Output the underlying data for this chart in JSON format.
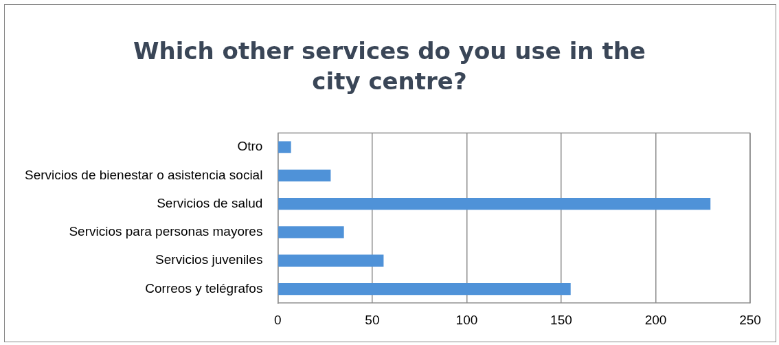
{
  "chart_data": {
    "type": "bar",
    "orientation": "horizontal",
    "title": "Which other services do you use in the city centre?",
    "categories": [
      "Otro",
      "Servicios de bienestar o asistencia social",
      "Servicios de salud",
      "Servicios para personas mayores",
      "Servicios juveniles",
      "Correos y telégrafos"
    ],
    "values": [
      7,
      28,
      229,
      35,
      56,
      155
    ],
    "color": "#4f92d8",
    "xlim": [
      0,
      250
    ],
    "xticks": [
      0,
      50,
      100,
      150,
      200,
      250
    ],
    "grid": "x",
    "legend": false
  }
}
